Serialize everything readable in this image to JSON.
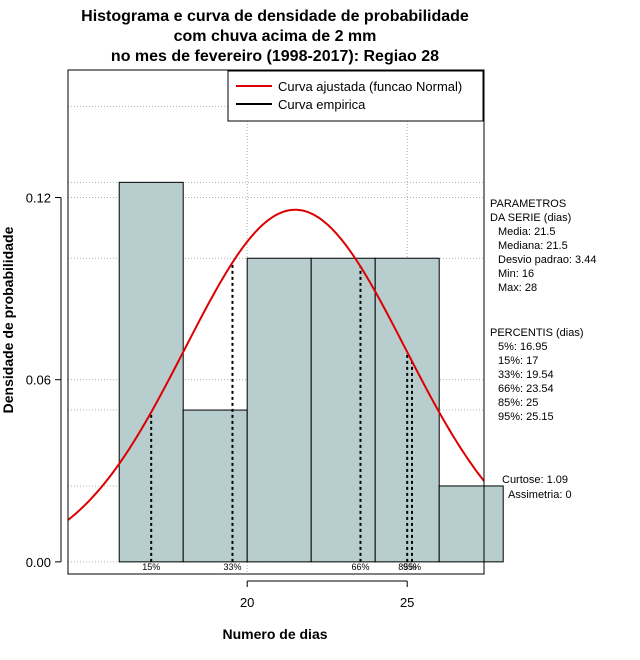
{
  "chart_data": {
    "type": "histogram",
    "title_lines": [
      "Histograma e curva de densidade de probabilidade",
      "com chuva acima de 2 mm",
      "no mes de fevereiro (1998-2017): Regiao 28"
    ],
    "xlabel": "Numero de dias",
    "ylabel": "Densidade de probabilidade",
    "xlim": [
      14.4,
      27.4
    ],
    "ylim": [
      -0.004,
      0.162
    ],
    "x_ticks": [
      20,
      25
    ],
    "y_ticks": [
      0.0,
      0.06,
      0.12
    ],
    "y_tick_labels": [
      "0.00",
      "0.06",
      "0.12"
    ],
    "grid": true,
    "bar_color": "#b8cece",
    "bins": [
      {
        "start": 16,
        "end": 18,
        "density": 0.125
      },
      {
        "start": 18,
        "end": 20,
        "density": 0.05
      },
      {
        "start": 20,
        "end": 22,
        "density": 0.1
      },
      {
        "start": 22,
        "end": 24,
        "density": 0.1
      },
      {
        "start": 24,
        "end": 26,
        "density": 0.1
      },
      {
        "start": 26,
        "end": 28,
        "density": 0.025
      }
    ],
    "fitted_curve": {
      "name": "Curva ajustada (funcao Normal)",
      "mean": 21.5,
      "sd": 3.44,
      "color": "#dd0000"
    },
    "empirical_curve": {
      "name": "Curva empirica",
      "color": "#000000"
    },
    "percentile_lines": [
      {
        "label": "15%",
        "x": 17.0,
        "show_label": true
      },
      {
        "label": "33%",
        "x": 19.54,
        "show_label": true
      },
      {
        "label": "66%",
        "x": 23.54,
        "show_label": true
      },
      {
        "label": "85%",
        "x": 25.0,
        "show_label": true
      },
      {
        "label": "95%",
        "x": 25.15,
        "show_label": true
      }
    ],
    "legend_position": "top-right"
  },
  "side_panel": {
    "params_title_1": "PARAMETROS",
    "params_title_2": "DA SERIE (dias)",
    "media": "Media: 21.5",
    "mediana": "Mediana: 21.5",
    "desvio": "Desvio padrao: 3.44",
    "min": "Min: 16",
    "max": "Max: 28",
    "percentis_title": "PERCENTIS (dias)",
    "p5": "5%: 16.95",
    "p15": "15%: 17",
    "p33": "33%: 19.54",
    "p66": "66%: 23.54",
    "p85": "85%: 25",
    "p95": "95%: 25.15",
    "curtose": "Curtose: 1.09",
    "assimetria": "Assimetria: 0"
  }
}
